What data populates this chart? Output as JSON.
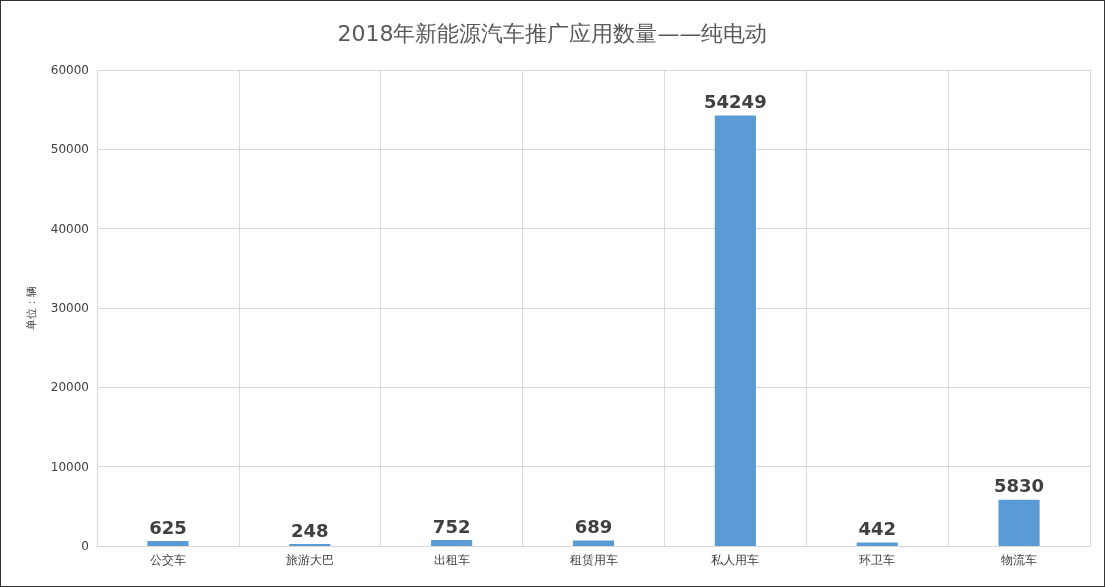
{
  "chart_data": {
    "type": "bar",
    "title": "2018年新能源汽车推广应用数量——纯电动",
    "ylabel": "单位：辆",
    "categories": [
      "公交车",
      "旅游大巴",
      "出租车",
      "租赁用车",
      "私人用车",
      "环卫车",
      "物流车"
    ],
    "values": [
      625,
      248,
      752,
      689,
      54249,
      442,
      5830
    ],
    "color": "#5b9bd5",
    "ylim": [
      0,
      60000
    ],
    "yticks": [
      0,
      10000,
      20000,
      30000,
      40000,
      50000,
      60000
    ],
    "grid": true,
    "data_labels": true
  }
}
